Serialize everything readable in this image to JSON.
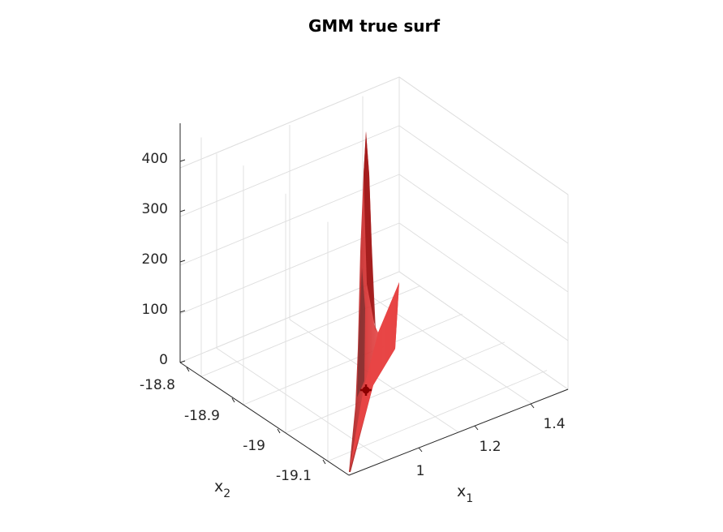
{
  "chart_data": {
    "type": "surface",
    "title": "GMM true surf",
    "xlabel": {
      "base": "x",
      "sub": "1"
    },
    "ylabel": {
      "base": "x",
      "sub": "2"
    },
    "zlabel": "",
    "xlim": [
      0.9,
      1.5
    ],
    "ylim": [
      -19.15,
      -18.75
    ],
    "zlim": [
      0,
      450
    ],
    "x_ticks": [
      1,
      1.2,
      1.4
    ],
    "y_ticks": [
      -18.8,
      -18.9,
      -19,
      -19.1
    ],
    "z_ticks": [
      0,
      100,
      200,
      300,
      400
    ],
    "grid": true,
    "surface_color": "#e83b3b",
    "marker_color": "#8b0000",
    "marker": {
      "x": 1.0,
      "y": -19.05,
      "z": 0
    },
    "surface_data": {
      "stem": [
        {
          "x": 0.95,
          "y": -19.15,
          "z": 0
        },
        {
          "x": 1.0,
          "y": -19.05,
          "z": 40
        },
        {
          "x": 1.05,
          "y": -18.95,
          "z": 460
        },
        {
          "x": 1.1,
          "y": -18.98,
          "z": 150
        },
        {
          "x": 1.3,
          "y": -19.1,
          "z": 0
        }
      ]
    }
  }
}
